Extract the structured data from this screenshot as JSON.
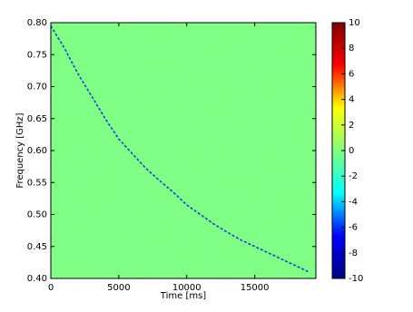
{
  "chart_data": {
    "type": "line",
    "x_label": "Time [ms]",
    "y_label": "Frequency [GHz]",
    "x": [
      0,
      1000,
      2000,
      3000,
      4000,
      5000,
      6000,
      7000,
      8000,
      9000,
      10000,
      11000,
      12000,
      13000,
      14000,
      15000,
      16000,
      17000,
      18000,
      19000
    ],
    "series": [
      {
        "color": "#2040d0",
        "values": [
          0.795,
          0.76,
          0.72,
          0.685,
          0.65,
          0.618,
          0.595,
          0.572,
          0.553,
          0.535,
          0.515,
          0.5,
          0.485,
          0.472,
          0.46,
          0.45,
          0.44,
          0.43,
          0.42,
          0.41
        ]
      }
    ],
    "xlim": [
      0,
      19500
    ],
    "xticks": [
      0,
      5000,
      10000,
      15000
    ],
    "ylim": [
      0.4,
      0.8
    ],
    "yticks": [
      {
        "value": 0.4,
        "label": "0.40"
      },
      0.45,
      {
        "value": 0.5,
        "label": "0.50"
      },
      0.55,
      {
        "value": 0.6,
        "label": "0.60"
      },
      0.65,
      {
        "value": 0.7,
        "label": "0.70"
      },
      0.75,
      {
        "value": 0.8,
        "label": "0.80"
      }
    ],
    "background_color": "#80ff7c",
    "colorbar": {
      "colormap": [
        "#00007f",
        "#0000ff",
        "#00ffff",
        "#80ff7c",
        "#ffff00",
        "#ff0000",
        "#7f0000"
      ],
      "lim": [
        -10,
        10
      ],
      "ticks": [
        -10,
        -8,
        -6,
        -4,
        -2,
        0,
        2,
        4,
        6,
        8,
        10
      ]
    }
  }
}
